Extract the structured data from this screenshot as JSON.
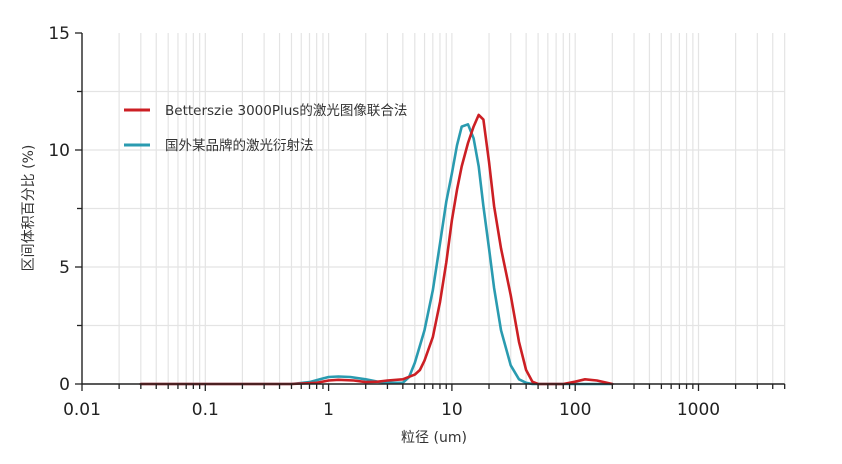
{
  "chart_data": {
    "type": "line",
    "title": "",
    "xlabel": "粒径 (um)",
    "ylabel": "区间体积百分比 (%)",
    "xscale": "log",
    "xlim": [
      0.01,
      5000
    ],
    "ylim": [
      0,
      15
    ],
    "x_ticks": [
      0.01,
      0.1,
      1,
      10,
      100,
      1000
    ],
    "x_tick_labels": [
      "0.01",
      "0.1",
      "1",
      "10",
      "100",
      "1000"
    ],
    "y_ticks": [
      0,
      5,
      10,
      15
    ],
    "y_tick_labels": [
      "0",
      "5",
      "10",
      "15"
    ],
    "grid": true,
    "legend_position": "upper-left",
    "series": [
      {
        "name": "Betterszie 3000Plus的激光图像联合法",
        "color": "#cc1f24",
        "x": [
          0.03,
          0.5,
          0.8,
          1.0,
          1.2,
          1.6,
          2.0,
          2.5,
          3.0,
          4.0,
          5.0,
          5.5,
          6.0,
          7.0,
          8.0,
          9.0,
          10.0,
          11.0,
          12.0,
          13.5,
          15.0,
          16.5,
          18.0,
          20.0,
          22.0,
          25.0,
          30.0,
          35.0,
          40.0,
          45.0,
          50.0,
          80.0,
          100.0,
          120.0,
          150.0,
          200.0
        ],
        "y": [
          0,
          0,
          0.05,
          0.15,
          0.18,
          0.15,
          0.08,
          0.1,
          0.15,
          0.2,
          0.4,
          0.6,
          1.0,
          2.0,
          3.5,
          5.2,
          7.0,
          8.3,
          9.3,
          10.3,
          11.0,
          11.5,
          11.3,
          9.5,
          7.6,
          5.8,
          3.8,
          1.8,
          0.6,
          0.1,
          0,
          0,
          0.1,
          0.2,
          0.15,
          0
        ]
      },
      {
        "name": "国外某品牌的激光衍射法",
        "color": "#2a9bb0",
        "x": [
          0.03,
          0.5,
          0.7,
          0.85,
          1.0,
          1.2,
          1.5,
          2.0,
          2.5,
          3.0,
          4.0,
          4.5,
          5.0,
          6.0,
          7.0,
          8.0,
          9.0,
          10.0,
          11.0,
          12.0,
          13.5,
          15.0,
          16.5,
          18.0,
          20.0,
          22.0,
          25.0,
          30.0,
          35.0,
          40.0,
          45.0,
          50.0,
          200.0
        ],
        "y": [
          0,
          0,
          0.08,
          0.2,
          0.3,
          0.32,
          0.3,
          0.2,
          0.1,
          0.05,
          0.05,
          0.3,
          0.9,
          2.3,
          4.0,
          6.0,
          7.8,
          9.0,
          10.2,
          11.0,
          11.1,
          10.5,
          9.3,
          7.6,
          5.8,
          4.1,
          2.3,
          0.8,
          0.2,
          0.05,
          0,
          0,
          0
        ]
      }
    ]
  },
  "legend": {
    "items": [
      {
        "label": "Betterszie 3000Plus的激光图像联合法",
        "color": "#cc1f24"
      },
      {
        "label": "国外某品牌的激光衍射法",
        "color": "#2a9bb0"
      }
    ]
  },
  "axes": {
    "x_title": "粒径 (um)",
    "y_title": "区间体积百分比 (%)",
    "x_tick_labels": [
      "0.01",
      "0.1",
      "1",
      "10",
      "100",
      "1000"
    ],
    "y_tick_labels": [
      "0",
      "5",
      "10",
      "15"
    ]
  }
}
